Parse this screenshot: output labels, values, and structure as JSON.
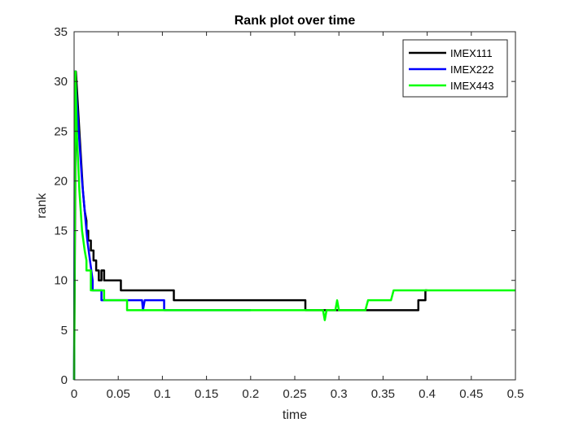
{
  "chart_data": {
    "type": "line",
    "title": "Rank plot over time",
    "xlabel": "time",
    "ylabel": "rank",
    "xlim": [
      0,
      0.5
    ],
    "ylim": [
      0,
      35
    ],
    "xticks": [
      0,
      0.05,
      0.1,
      0.15,
      0.2,
      0.25,
      0.3,
      0.35,
      0.4,
      0.45,
      0.5
    ],
    "xtick_labels": [
      "0",
      "0.05",
      "0.1",
      "0.15",
      "0.2",
      "0.25",
      "0.3",
      "0.35",
      "0.4",
      "0.45",
      "0.5"
    ],
    "yticks": [
      0,
      5,
      10,
      15,
      20,
      25,
      30,
      35
    ],
    "ytick_labels": [
      "0",
      "5",
      "10",
      "15",
      "20",
      "25",
      "30",
      "35"
    ],
    "grid": false,
    "legend_position": "top-right",
    "series": [
      {
        "name": "IMEX111",
        "color": "#000000",
        "x": [
          0,
          0.002,
          0.004,
          0.006,
          0.008,
          0.01,
          0.012,
          0.014,
          0.014,
          0.016,
          0.016,
          0.019,
          0.019,
          0.022,
          0.022,
          0.025,
          0.025,
          0.028,
          0.028,
          0.031,
          0.031,
          0.034,
          0.034,
          0.038,
          0.038,
          0.053,
          0.053,
          0.113,
          0.113,
          0.262,
          0.262,
          0.265,
          0.265,
          0.39,
          0.39,
          0.398,
          0.398,
          0.4
        ],
        "y": [
          0,
          31,
          28,
          25,
          22,
          19,
          17,
          16,
          15,
          15,
          14,
          14,
          13,
          13,
          12,
          12,
          11,
          11,
          10,
          10,
          11,
          11,
          10,
          10,
          10,
          10,
          9,
          9,
          8,
          8,
          7,
          7,
          7,
          7,
          8,
          8,
          9,
          9
        ]
      },
      {
        "name": "IMEX222",
        "color": "#0000ff",
        "x": [
          0,
          0.001,
          0.003,
          0.006,
          0.009,
          0.012,
          0.015,
          0.018,
          0.021,
          0.021,
          0.031,
          0.031,
          0.035,
          0.035,
          0.077,
          0.078,
          0.08,
          0.08,
          0.102,
          0.102,
          0.2
        ],
        "y": [
          0,
          31,
          28,
          24,
          20,
          17,
          14,
          12,
          10,
          9,
          9,
          8,
          8,
          8,
          8,
          7,
          8,
          8,
          8,
          7,
          7
        ]
      },
      {
        "name": "IMEX443",
        "color": "#00ff00",
        "x": [
          0,
          0.0015,
          0.003,
          0.006,
          0.009,
          0.012,
          0.014,
          0.014,
          0.019,
          0.019,
          0.034,
          0.034,
          0.037,
          0.037,
          0.06,
          0.06,
          0.282,
          0.284,
          0.286,
          0.288,
          0.296,
          0.298,
          0.3,
          0.302,
          0.33,
          0.333,
          0.333,
          0.359,
          0.362,
          0.362,
          0.5
        ],
        "y": [
          0,
          31,
          25,
          19,
          15,
          13,
          12,
          11,
          11,
          9,
          9,
          8,
          8,
          8,
          8,
          7,
          7,
          6,
          7,
          7,
          7,
          8,
          7,
          7,
          7,
          8,
          8,
          8,
          9,
          9,
          9
        ]
      }
    ]
  }
}
